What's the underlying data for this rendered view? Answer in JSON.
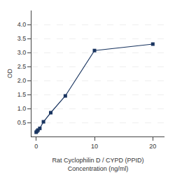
{
  "chart_data": {
    "type": "line",
    "x": [
      0,
      0.156,
      0.312,
      0.625,
      1.25,
      2.5,
      5,
      10,
      20
    ],
    "values": [
      0.152,
      0.193,
      0.229,
      0.291,
      0.525,
      0.85,
      1.45,
      3.07,
      3.3
    ],
    "color": "#1a3560",
    "marker": "square",
    "xlabel": "Rat Cyclophilin D / CYPD (PPID)\nConcentration (ng/ml)",
    "ylabel": "OD",
    "xlim": [
      -0.8,
      22
    ],
    "xticks": [
      0,
      10,
      20
    ],
    "ylim": [
      0,
      4.5
    ],
    "yticks": [
      0.5,
      {
        "value": 1,
        "label": "1.0"
      },
      1.5,
      {
        "value": 2,
        "label": "2.0"
      },
      2.5,
      {
        "value": 3,
        "label": "3.0"
      },
      3.5,
      {
        "value": 4,
        "label": "4.0"
      }
    ],
    "grid": true
  }
}
